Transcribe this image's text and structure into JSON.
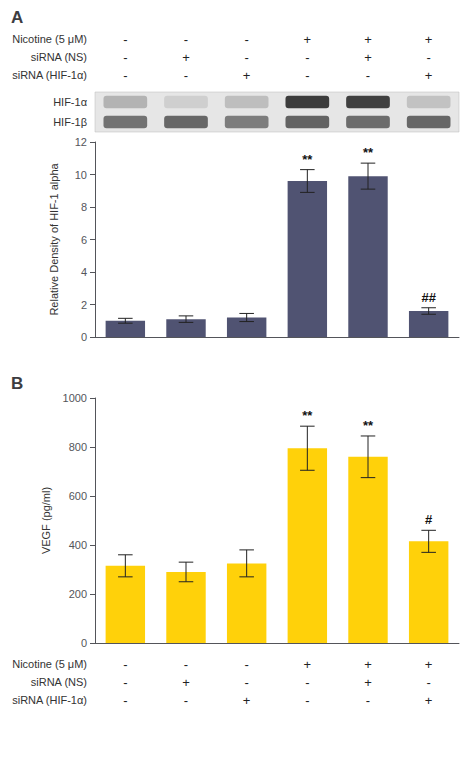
{
  "chart_data": [
    {
      "type": "bar",
      "title": "A",
      "categories": [
        null,
        null,
        null,
        null,
        null,
        null
      ],
      "values": [
        1.0,
        1.1,
        1.2,
        9.6,
        9.9,
        1.6
      ],
      "errors": [
        0.15,
        0.2,
        0.25,
        0.7,
        0.8,
        0.2
      ],
      "annotations": [
        null,
        null,
        null,
        "**",
        "**",
        "##"
      ],
      "ylabel": "Relative Density of HIF-1 alpha",
      "ylim": [
        0,
        12
      ],
      "yticks": [
        0,
        2,
        4,
        6,
        8,
        10,
        12
      ],
      "grid": false,
      "tick_labels": "y",
      "conditions": [
        {
          "label": "Nicotine (5 μM)",
          "values": [
            "-",
            "-",
            "-",
            "+",
            "+",
            "+"
          ]
        },
        {
          "label": "siRNA (NS)",
          "values": [
            "-",
            "+",
            "-",
            "-",
            "+",
            "-"
          ]
        },
        {
          "label": "siRNA (HIF-1α)",
          "values": [
            "-",
            "-",
            "+",
            "-",
            "-",
            "+"
          ]
        }
      ],
      "blots": [
        {
          "label": "HIF-1α",
          "values": [
            0.35,
            0.22,
            0.3,
            0.9,
            0.88,
            0.28
          ]
        },
        {
          "label": "HIF-1β",
          "values": [
            0.65,
            0.7,
            0.6,
            0.72,
            0.68,
            0.7
          ]
        }
      ]
    },
    {
      "type": "bar",
      "title": "B",
      "categories": [
        null,
        null,
        null,
        null,
        null,
        null
      ],
      "values": [
        315,
        290,
        325,
        795,
        760,
        415
      ],
      "errors": [
        45,
        40,
        55,
        90,
        85,
        45
      ],
      "annotations": [
        null,
        null,
        null,
        "**",
        "**",
        "#"
      ],
      "ylabel": "VEGF (pg/ml)",
      "ylim": [
        0,
        1000
      ],
      "yticks": [
        0,
        200,
        400,
        600,
        800,
        1000
      ],
      "grid": false,
      "tick_labels": "y",
      "conditions": [
        {
          "label": "Nicotine (5 μM)",
          "values": [
            "-",
            "-",
            "-",
            "+",
            "+",
            "+"
          ]
        },
        {
          "label": "siRNA (NS)",
          "values": [
            "-",
            "+",
            "-",
            "-",
            "+",
            "-"
          ]
        },
        {
          "label": "siRNA (HIF-1α)",
          "values": [
            "-",
            "-",
            "+",
            "-",
            "-",
            "+"
          ]
        }
      ]
    }
  ]
}
